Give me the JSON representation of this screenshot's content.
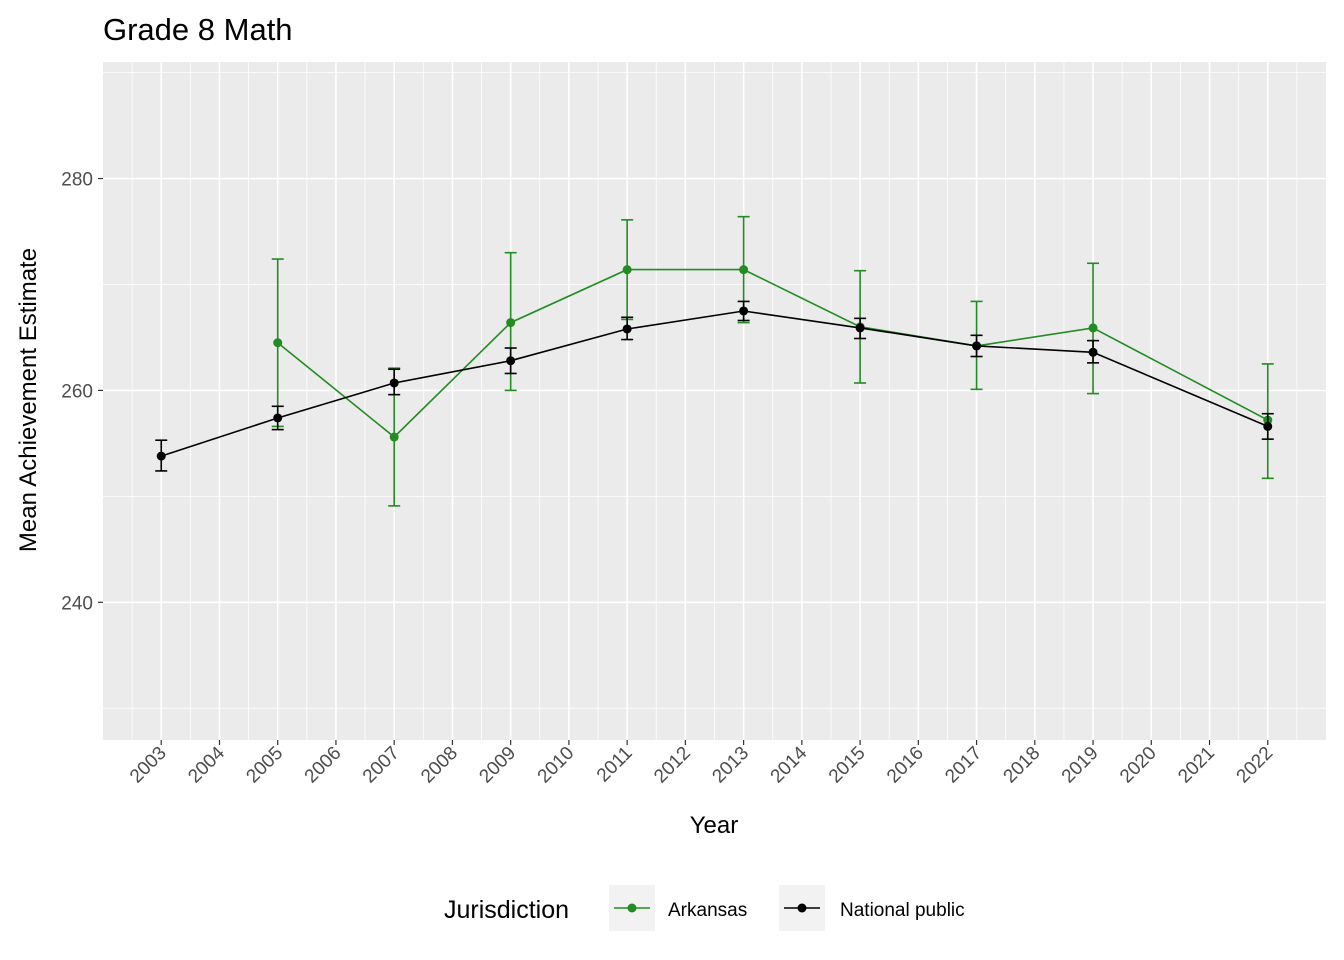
{
  "chart_data": {
    "type": "line",
    "title": "Grade 8 Math",
    "xlabel": "Year",
    "ylabel": "Mean Achievement Estimate",
    "x_ticks": [
      "2003",
      "2004",
      "2005",
      "2006",
      "2007",
      "2008",
      "2009",
      "2010",
      "2011",
      "2012",
      "2013",
      "2014",
      "2015",
      "2016",
      "2017",
      "2018",
      "2019",
      "2020",
      "2021",
      "2022"
    ],
    "y_ticks": [
      240,
      260,
      280
    ],
    "xlim": [
      2002,
      2023
    ],
    "ylim": [
      227,
      291
    ],
    "grid": true,
    "error_bars": true,
    "legend": {
      "title": "Jurisdiction",
      "position": "bottom"
    },
    "series": [
      {
        "name": "Arkansas",
        "color": "#228b22",
        "points": [
          {
            "x": 2005,
            "y": 264.5,
            "lo": 256.6,
            "hi": 272.4
          },
          {
            "x": 2007,
            "y": 255.6,
            "lo": 249.1,
            "hi": 262.1
          },
          {
            "x": 2009,
            "y": 266.4,
            "lo": 260.0,
            "hi": 273.0
          },
          {
            "x": 2011,
            "y": 271.4,
            "lo": 266.7,
            "hi": 276.1
          },
          {
            "x": 2013,
            "y": 271.4,
            "lo": 266.4,
            "hi": 276.4
          },
          {
            "x": 2015,
            "y": 266.0,
            "lo": 260.7,
            "hi": 271.3
          },
          {
            "x": 2017,
            "y": 264.2,
            "lo": 260.1,
            "hi": 268.4
          },
          {
            "x": 2019,
            "y": 265.9,
            "lo": 259.7,
            "hi": 272.0
          },
          {
            "x": 2022,
            "y": 257.2,
            "lo": 251.7,
            "hi": 262.5
          }
        ]
      },
      {
        "name": "National public",
        "color": "#000000",
        "points": [
          {
            "x": 2003,
            "y": 253.8,
            "lo": 252.4,
            "hi": 255.3
          },
          {
            "x": 2005,
            "y": 257.4,
            "lo": 256.3,
            "hi": 258.5
          },
          {
            "x": 2007,
            "y": 260.7,
            "lo": 259.6,
            "hi": 262.0
          },
          {
            "x": 2009,
            "y": 262.8,
            "lo": 261.6,
            "hi": 264.0
          },
          {
            "x": 2011,
            "y": 265.8,
            "lo": 264.8,
            "hi": 266.9
          },
          {
            "x": 2013,
            "y": 267.5,
            "lo": 266.6,
            "hi": 268.4
          },
          {
            "x": 2015,
            "y": 265.9,
            "lo": 264.9,
            "hi": 266.8
          },
          {
            "x": 2017,
            "y": 264.2,
            "lo": 263.2,
            "hi": 265.2
          },
          {
            "x": 2019,
            "y": 263.6,
            "lo": 262.6,
            "hi": 264.7
          },
          {
            "x": 2022,
            "y": 256.6,
            "lo": 255.4,
            "hi": 257.8
          }
        ]
      }
    ]
  }
}
